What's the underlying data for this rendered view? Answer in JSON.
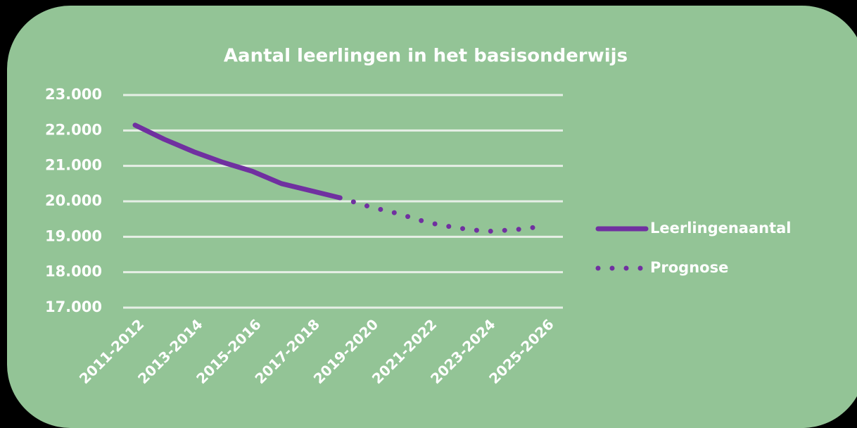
{
  "chart_data": {
    "type": "line",
    "title": "Aantal leerlingen in het basisonderwijs",
    "categories": [
      "2011-2012",
      null,
      "2013-2014",
      null,
      "2015-2016",
      null,
      "2017-2018",
      null,
      "2019-2020",
      null,
      "2021-2022",
      null,
      "2023-2024",
      null,
      "2025-2026"
    ],
    "series": [
      {
        "name": "Leerlingenaantal",
        "color": "#7030a0",
        "style": "solid",
        "values": [
          22150,
          21750,
          21400,
          21100,
          20850,
          20500,
          20300,
          20100,
          null,
          null,
          null,
          null,
          null,
          null,
          null
        ]
      },
      {
        "name": "Prognose",
        "color": "#7030a0",
        "style": "dotted",
        "values": [
          null,
          null,
          null,
          null,
          null,
          null,
          null,
          20100,
          19850,
          19650,
          19400,
          19250,
          19150,
          19200,
          19300
        ]
      }
    ],
    "ylim": [
      17000,
      23000
    ],
    "yticks": [
      {
        "value": 17000,
        "label": "17.000"
      },
      {
        "value": 18000,
        "label": "18.000"
      },
      {
        "value": 19000,
        "label": "19.000"
      },
      {
        "value": 20000,
        "label": "20.000"
      },
      {
        "value": 21000,
        "label": "21.000"
      },
      {
        "value": 22000,
        "label": "22.000"
      },
      {
        "value": 23000,
        "label": "23.000"
      }
    ],
    "grid": true,
    "legend": "right"
  }
}
